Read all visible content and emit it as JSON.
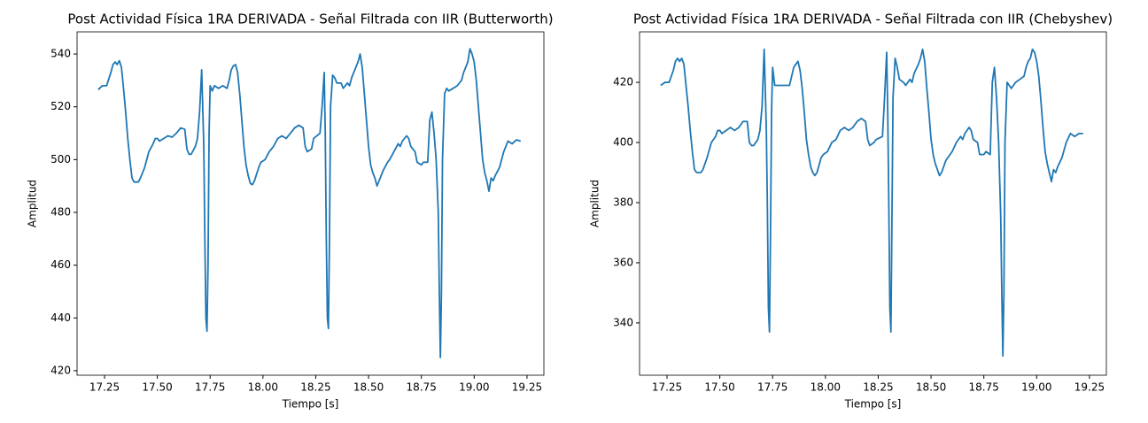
{
  "chart_data": [
    {
      "type": "line",
      "title": "Post Actividad Física 1RA DERIVADA - Señal Filtrada con IIR (Butterworth)",
      "xlabel": "Tiempo [s]",
      "ylabel": "Amplitud",
      "xlim": [
        17.12,
        19.33
      ],
      "ylim": [
        418.3,
        548.4
      ],
      "xticks": [
        17.25,
        {
          "value": 17.5,
          "label": "17.50"
        },
        17.75,
        {
          "value": 18,
          "label": "18.00"
        },
        18.25,
        {
          "value": 18.5,
          "label": "18.50"
        },
        18.75,
        {
          "value": 19,
          "label": "19.00"
        },
        19.25
      ],
      "yticks": [
        420,
        440,
        460,
        480,
        500,
        520,
        540
      ],
      "x": [
        17.22,
        17.24,
        17.26,
        17.28,
        17.29,
        17.3,
        17.31,
        17.32,
        17.33,
        17.34,
        17.35,
        17.36,
        17.37,
        17.38,
        17.39,
        17.41,
        17.42,
        17.44,
        17.46,
        17.48,
        17.49,
        17.5,
        17.51,
        17.53,
        17.55,
        17.57,
        17.59,
        17.61,
        17.63,
        17.64,
        17.65,
        17.66,
        17.68,
        17.69,
        17.7,
        17.71,
        17.72,
        17.725,
        17.73,
        17.735,
        17.74,
        17.745,
        17.75,
        17.76,
        17.77,
        17.79,
        17.81,
        17.83,
        17.84,
        17.85,
        17.86,
        17.87,
        17.88,
        17.89,
        17.9,
        17.91,
        17.92,
        17.93,
        17.94,
        17.95,
        17.96,
        17.98,
        17.99,
        18.01,
        18.03,
        18.05,
        18.07,
        18.09,
        18.11,
        18.13,
        18.15,
        18.17,
        18.19,
        18.2,
        18.21,
        18.23,
        18.24,
        18.27,
        18.28,
        18.29,
        18.295,
        18.3,
        18.305,
        18.31,
        18.315,
        18.32,
        18.33,
        18.34,
        18.35,
        18.37,
        18.38,
        18.4,
        18.41,
        18.42,
        18.44,
        18.45,
        18.46,
        18.47,
        18.48,
        18.49,
        18.5,
        18.51,
        18.52,
        18.53,
        18.54,
        18.55,
        18.57,
        18.59,
        18.6,
        18.62,
        18.64,
        18.65,
        18.66,
        18.68,
        18.69,
        18.7,
        18.72,
        18.73,
        18.75,
        18.76,
        18.78,
        18.79,
        18.8,
        18.81,
        18.82,
        18.83,
        18.835,
        18.84,
        18.845,
        18.85,
        18.86,
        18.87,
        18.88,
        18.9,
        18.92,
        18.94,
        18.95,
        18.96,
        18.97,
        18.98,
        18.99,
        19,
        19.01,
        19.02,
        19.03,
        19.04,
        19.05,
        19.06,
        19.07,
        19.08,
        19.09,
        19.1,
        19.12,
        19.14,
        19.16,
        19.18,
        19.2,
        19.22
      ],
      "series": [
        {
          "color": "#1f77b4",
          "values": [
            526.5,
            528,
            528,
            533,
            536,
            537,
            536,
            537.5,
            535,
            527,
            518,
            508,
            500,
            493,
            491.5,
            491.5,
            493,
            497,
            503,
            506,
            508,
            508,
            507,
            508,
            509,
            508.5,
            510,
            512,
            511.5,
            504,
            502,
            502,
            505,
            508,
            518,
            534,
            505,
            470,
            440,
            435,
            460,
            510,
            528,
            526,
            528,
            527,
            528,
            527,
            530,
            534,
            535.5,
            536,
            533,
            525,
            515,
            505,
            498,
            494,
            491,
            490.5,
            492,
            497,
            499,
            500,
            503,
            505,
            508,
            509,
            508,
            510,
            512,
            513,
            512,
            505,
            503,
            504,
            508,
            510,
            520,
            533,
            510,
            470,
            440,
            436,
            470,
            520,
            532,
            531,
            529,
            529,
            527,
            529,
            528,
            531,
            535,
            537,
            540,
            535,
            525,
            515,
            505,
            498,
            495,
            493,
            490,
            492,
            496,
            499,
            500,
            503,
            506,
            505,
            507,
            509,
            508,
            505,
            503,
            499,
            498,
            499,
            499,
            515,
            518,
            510,
            500,
            480,
            450,
            425,
            450,
            500,
            525,
            527,
            526,
            527,
            528,
            530,
            533,
            535,
            537,
            542,
            540,
            537,
            530,
            520,
            510,
            500,
            495,
            492,
            488,
            493,
            492,
            494,
            497,
            503,
            507,
            506,
            507.5,
            507
          ]
        }
      ]
    },
    {
      "type": "line",
      "title": "Post Actividad Física 1RA DERIVADA - Señal Filtrada con IIR (Chebyshev)",
      "xlabel": "Tiempo [s]",
      "ylabel": "Amplitud",
      "xlim": [
        17.12,
        19.33
      ],
      "ylim": [
        322.6,
        436.8
      ],
      "xticks": [
        17.25,
        {
          "value": 17.5,
          "label": "17.50"
        },
        17.75,
        {
          "value": 18,
          "label": "18.00"
        },
        18.25,
        {
          "value": 18.5,
          "label": "18.50"
        },
        18.75,
        {
          "value": 19,
          "label": "19.00"
        },
        19.25
      ],
      "yticks": [
        340,
        360,
        380,
        400,
        420
      ],
      "x": [
        17.22,
        17.24,
        17.26,
        17.28,
        17.29,
        17.3,
        17.31,
        17.32,
        17.33,
        17.34,
        17.35,
        17.36,
        17.37,
        17.38,
        17.39,
        17.41,
        17.42,
        17.44,
        17.46,
        17.48,
        17.49,
        17.5,
        17.51,
        17.53,
        17.55,
        17.57,
        17.59,
        17.61,
        17.63,
        17.64,
        17.65,
        17.66,
        17.68,
        17.69,
        17.7,
        17.71,
        17.72,
        17.725,
        17.73,
        17.735,
        17.74,
        17.745,
        17.75,
        17.76,
        17.77,
        17.79,
        17.81,
        17.83,
        17.84,
        17.85,
        17.86,
        17.87,
        17.88,
        17.89,
        17.9,
        17.91,
        17.92,
        17.93,
        17.94,
        17.95,
        17.96,
        17.98,
        17.99,
        18.01,
        18.03,
        18.05,
        18.07,
        18.09,
        18.11,
        18.13,
        18.15,
        18.17,
        18.19,
        18.2,
        18.21,
        18.23,
        18.24,
        18.27,
        18.28,
        18.29,
        18.295,
        18.3,
        18.305,
        18.31,
        18.315,
        18.32,
        18.33,
        18.34,
        18.35,
        18.37,
        18.38,
        18.4,
        18.41,
        18.42,
        18.44,
        18.45,
        18.46,
        18.47,
        18.48,
        18.49,
        18.5,
        18.51,
        18.52,
        18.53,
        18.54,
        18.55,
        18.57,
        18.59,
        18.6,
        18.62,
        18.64,
        18.65,
        18.66,
        18.68,
        18.69,
        18.7,
        18.72,
        18.73,
        18.75,
        18.76,
        18.78,
        18.79,
        18.8,
        18.81,
        18.82,
        18.83,
        18.835,
        18.84,
        18.845,
        18.85,
        18.86,
        18.87,
        18.88,
        18.9,
        18.92,
        18.94,
        18.95,
        18.96,
        18.97,
        18.98,
        18.99,
        19,
        19.01,
        19.02,
        19.03,
        19.04,
        19.05,
        19.06,
        19.07,
        19.08,
        19.09,
        19.1,
        19.12,
        19.14,
        19.16,
        19.18,
        19.2,
        19.22
      ],
      "series": [
        {
          "color": "#1f77b4",
          "values": [
            419,
            420,
            420,
            424,
            427,
            428,
            427,
            428,
            426,
            419,
            412,
            404,
            397,
            391,
            390,
            390,
            391,
            395,
            400,
            402,
            404,
            404,
            403,
            404,
            405,
            404,
            405,
            407,
            407,
            400,
            399,
            399,
            401,
            404,
            412,
            431,
            405,
            380,
            345,
            337,
            370,
            410,
            425,
            419,
            419,
            419,
            419,
            419,
            422,
            425,
            426,
            427,
            424,
            418,
            410,
            401,
            396,
            392,
            390,
            389,
            390,
            395,
            396,
            397,
            400,
            401,
            404,
            405,
            404,
            405,
            407,
            408,
            407,
            401,
            399,
            400,
            401,
            402,
            415,
            430,
            410,
            380,
            345,
            337,
            375,
            415,
            428,
            425,
            421,
            420,
            419,
            421,
            420,
            423,
            426,
            428,
            431,
            427,
            418,
            410,
            401,
            396,
            393,
            391,
            389,
            390,
            394,
            396,
            397,
            400,
            402,
            401,
            403,
            405,
            404,
            401,
            400,
            396,
            396,
            397,
            396,
            420,
            425,
            415,
            400,
            375,
            350,
            329,
            350,
            400,
            420,
            419,
            418,
            420,
            421,
            422,
            425,
            427,
            428,
            431,
            430,
            427,
            422,
            414,
            405,
            397,
            393,
            390,
            387,
            391,
            390,
            392,
            395,
            400,
            403,
            402,
            403,
            403
          ]
        }
      ]
    }
  ]
}
